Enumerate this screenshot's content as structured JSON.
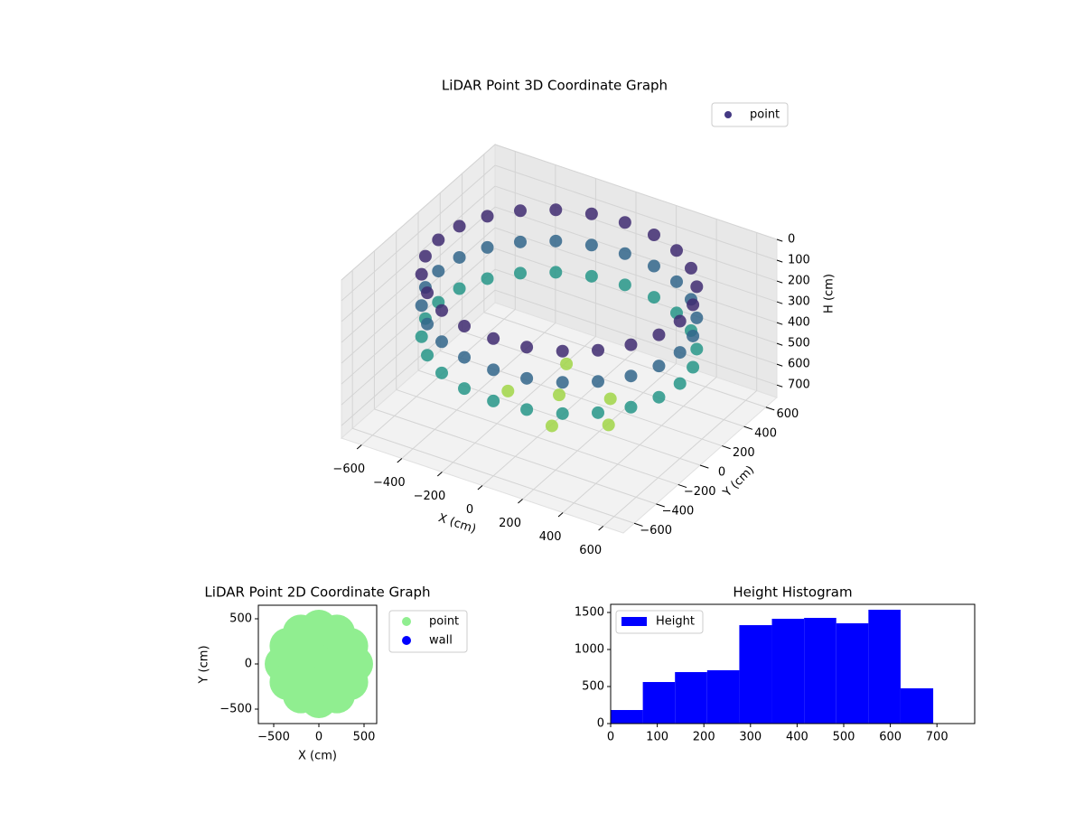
{
  "chart_data": [
    {
      "type": "scatter3d",
      "title": "LiDAR Point 3D Coordinate Graph",
      "xlabel": "X (cm)",
      "ylabel": "Y (cm)",
      "zlabel": "H (cm)",
      "xlim": [
        -700,
        700
      ],
      "ylim": [
        -700,
        700
      ],
      "zlim": [
        0,
        760
      ],
      "zinvert": true,
      "xticks": [
        {
          "value": -600,
          "label": "−600"
        },
        {
          "value": -400,
          "label": "−400"
        },
        {
          "value": -200,
          "label": "−200"
        },
        0,
        200,
        400,
        600
      ],
      "yticks": [
        {
          "value": -600,
          "label": "−600"
        },
        {
          "value": -400,
          "label": "−400"
        },
        {
          "value": -200,
          "label": "−200"
        },
        0,
        200,
        400,
        600
      ],
      "zticks": [
        0,
        100,
        200,
        300,
        400,
        500,
        600,
        700
      ],
      "colormap": "viridis",
      "legend": "upper right",
      "grid": true,
      "series": [
        {
          "name": "point",
          "color": "#443983",
          "x": [
            0,
            200,
            -200,
            100,
            -100,
            300,
            600,
            580,
            520,
            424,
            300,
            155,
            0,
            -155,
            -300,
            -424,
            -520,
            -580,
            -600,
            -580,
            -520,
            -424,
            -300,
            -155,
            0,
            155,
            300,
            424,
            520,
            580,
            600,
            580,
            520,
            424,
            300,
            155,
            0,
            -155,
            -300,
            -424,
            -520,
            -580,
            -600,
            -580,
            -520,
            -424,
            -300,
            -155,
            0,
            155,
            300,
            424,
            520,
            580,
            600,
            580,
            520,
            424,
            300,
            155,
            0,
            -155,
            -300,
            -424,
            -520,
            -580,
            -600,
            -580,
            -520,
            -424,
            -300,
            -155,
            0,
            155,
            300,
            424,
            520,
            580
          ],
          "y": [
            0,
            100,
            -100,
            -250,
            250,
            -100,
            0,
            155,
            300,
            424,
            520,
            580,
            600,
            580,
            520,
            424,
            300,
            155,
            0,
            -155,
            -300,
            -424,
            -520,
            -580,
            -600,
            -580,
            -520,
            -424,
            -300,
            -155,
            0,
            155,
            300,
            424,
            520,
            580,
            600,
            580,
            520,
            424,
            300,
            155,
            0,
            -155,
            -300,
            -424,
            -520,
            -580,
            -600,
            -580,
            -520,
            -424,
            -300,
            -155,
            0,
            155,
            300,
            424,
            520,
            580,
            600,
            580,
            520,
            424,
            300,
            155,
            0,
            -155,
            -300,
            -424,
            -520,
            -580,
            -600,
            -580,
            -520,
            -424,
            -300,
            -155
          ],
          "z": [
            650,
            650,
            650,
            650,
            650,
            650,
            400,
            400,
            400,
            400,
            400,
            400,
            400,
            400,
            400,
            400,
            400,
            400,
            400,
            400,
            400,
            400,
            400,
            400,
            400,
            400,
            400,
            400,
            400,
            400,
            250,
            250,
            250,
            250,
            250,
            250,
            250,
            250,
            250,
            250,
            250,
            250,
            250,
            250,
            250,
            250,
            250,
            250,
            250,
            250,
            250,
            250,
            250,
            250,
            100,
            100,
            100,
            100,
            100,
            100,
            100,
            100,
            100,
            100,
            100,
            100,
            100,
            100,
            100,
            100,
            100,
            100,
            100,
            100,
            100,
            100,
            100,
            100
          ]
        }
      ]
    },
    {
      "type": "scatter",
      "title": "LiDAR Point 2D Coordinate Graph",
      "xlabel": "X (cm)",
      "ylabel": "Y (cm)",
      "xlim": [
        -670,
        640
      ],
      "ylim": [
        -660,
        650
      ],
      "xticks": [
        {
          "value": -500,
          "label": "−500"
        },
        0,
        500
      ],
      "yticks": [
        {
          "value": -500,
          "label": "−500"
        },
        0,
        500
      ],
      "legend": "outside right",
      "series": [
        {
          "name": "point",
          "color": "#90ee90",
          "x": [
            0,
            200,
            100,
            -100,
            -200,
            -100,
            100,
            400,
            346,
            200,
            0,
            -200,
            -346,
            -400,
            -346,
            -200,
            0,
            200,
            346
          ],
          "y": [
            0,
            0,
            173,
            173,
            0,
            -173,
            -173,
            0,
            200,
            346,
            400,
            346,
            200,
            0,
            -200,
            -346,
            -400,
            -346,
            -200
          ]
        },
        {
          "name": "wall",
          "color": "#0000ff",
          "x": [],
          "y": []
        }
      ]
    },
    {
      "type": "histogram",
      "title": "Height Histogram",
      "xlim": [
        0,
        781
      ],
      "ylim": [
        0,
        1610
      ],
      "xticks": [
        0,
        100,
        200,
        300,
        400,
        500,
        600,
        700
      ],
      "yticks": [
        0,
        500,
        1000,
        1500
      ],
      "legend": "upper left",
      "bins": [
        0,
        69,
        138,
        207,
        276,
        346,
        415,
        484,
        553,
        622,
        692
      ],
      "series": [
        {
          "name": "Height",
          "color": "#0000ff",
          "values": [
            183,
            561,
            695,
            720,
            1329,
            1415,
            1427,
            1354,
            1537,
            476
          ]
        }
      ]
    }
  ]
}
